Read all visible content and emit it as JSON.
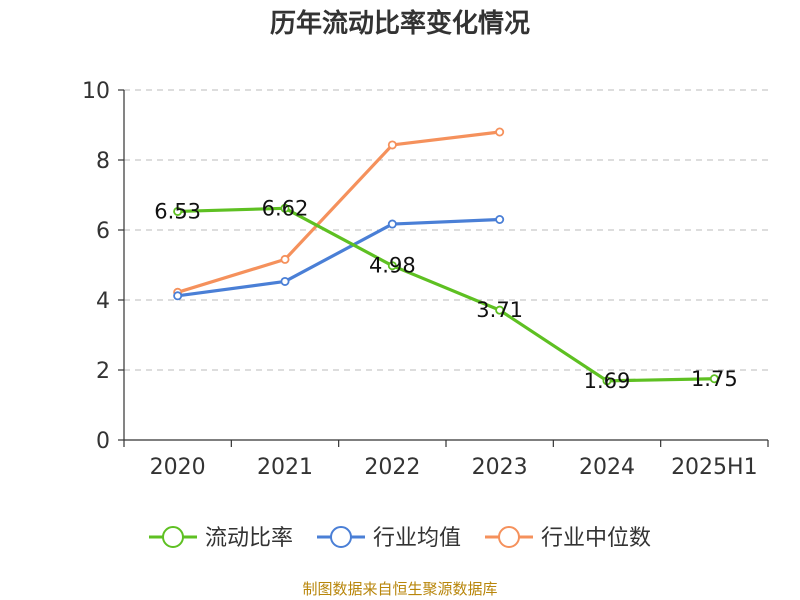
{
  "chart_data": {
    "type": "line",
    "title": "历年流动比率变化情况",
    "categories": [
      "2020",
      "2021",
      "2022",
      "2023",
      "2024",
      "2025H1"
    ],
    "ylim": [
      0,
      10
    ],
    "yticks": [
      0,
      2,
      4,
      6,
      8,
      10
    ],
    "grid": true,
    "legend_position": "bottom",
    "series": [
      {
        "name": "流动比率",
        "color": "#5ec022",
        "values": [
          6.53,
          6.62,
          4.98,
          3.71,
          1.69,
          1.75
        ],
        "show_labels": true
      },
      {
        "name": "行业均值",
        "color": "#4a7fd6",
        "values": [
          4.12,
          4.53,
          6.17,
          6.3,
          null,
          null
        ],
        "show_labels": false
      },
      {
        "name": "行业中位数",
        "color": "#f5915c",
        "values": [
          4.22,
          5.16,
          8.43,
          8.8,
          null,
          null
        ],
        "show_labels": false
      }
    ]
  },
  "source": "制图数据来自恒生聚源数据库"
}
